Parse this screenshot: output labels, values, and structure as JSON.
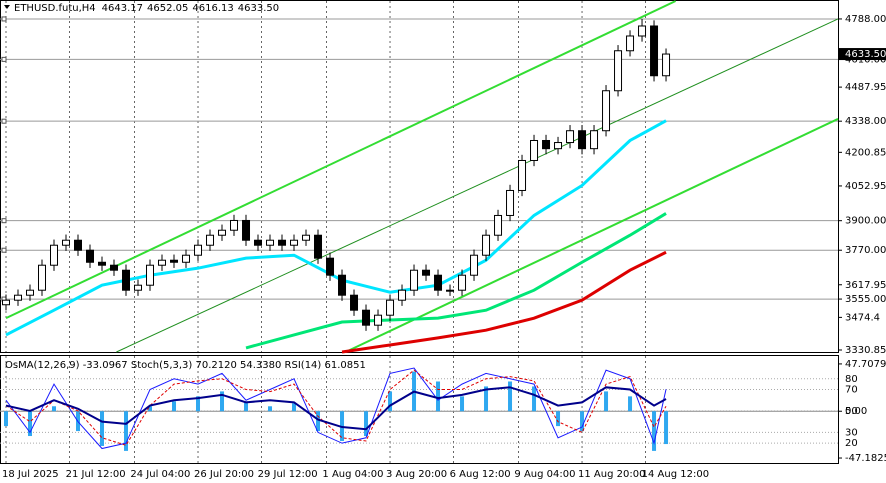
{
  "chart_data": [
    {
      "type": "candlestick",
      "title": "ETHUSD.futu,H4",
      "header_values": [
        "4643.17",
        "4652.05",
        "4616.13",
        "4633.50"
      ],
      "last_price_label": "4633.50",
      "xlim": [
        -0.5,
        69.33
      ],
      "xticks": [
        {
          "value": 0,
          "label": "18 Jul 2025"
        },
        {
          "value": 5.3,
          "label": "21 Jul 12:00"
        },
        {
          "value": 10.7,
          "label": "24 Jul 04:00"
        },
        {
          "value": 16,
          "label": "26 Jul 20:00"
        },
        {
          "value": 21.3,
          "label": "29 Jul 12:00"
        },
        {
          "value": 26.7,
          "label": "1 Aug 04:00"
        },
        {
          "value": 32,
          "label": "3 Aug 20:00"
        },
        {
          "value": 37.3,
          "label": "6 Aug 12:00"
        },
        {
          "value": 42.7,
          "label": "9 Aug 04:00"
        },
        {
          "value": 48,
          "label": "11 Aug 20:00"
        },
        {
          "value": 53.3,
          "label": "14 Aug 12:00"
        }
      ],
      "ylim": [
        3322,
        4867
      ],
      "yticks": [
        {
          "value": 4788,
          "label": "4788.00"
        },
        {
          "value": 4610,
          "label": "4610.00"
        },
        4487.95,
        {
          "value": 4338,
          "label": "4338.00"
        },
        4200.85,
        4052.95,
        {
          "value": 3900,
          "label": "3900.00"
        },
        {
          "value": 3770,
          "label": "3770.00"
        },
        3617.95,
        {
          "value": 3555,
          "label": "3555.00"
        },
        3474.4,
        3330.85
      ],
      "levels": [
        4788,
        4610,
        4338,
        3900,
        3770,
        3555
      ],
      "open": [
        3530,
        3550,
        3572,
        3594,
        3704,
        3792,
        3814,
        3770,
        3717,
        3704,
        3682,
        3594,
        3616,
        3704,
        3726,
        3717,
        3748,
        3792,
        3836,
        3858,
        3901,
        3814,
        3792,
        3814,
        3792,
        3814,
        3836,
        3735,
        3660,
        3572,
        3506,
        3440,
        3484,
        3550,
        3594,
        3682,
        3660,
        3594,
        3594,
        3660,
        3748,
        3836,
        3923,
        4033,
        4165,
        4253,
        4217,
        4244,
        4296,
        4217,
        4296,
        4472,
        4648,
        4713,
        4757,
        4538
      ],
      "high": [
        3575,
        3597,
        3619,
        3729,
        3817,
        3839,
        3839,
        3795,
        3742,
        3729,
        3707,
        3641,
        3729,
        3751,
        3751,
        3773,
        3817,
        3861,
        3883,
        3926,
        3926,
        3839,
        3839,
        3839,
        3839,
        3861,
        3861,
        3760,
        3685,
        3597,
        3531,
        3509,
        3575,
        3619,
        3707,
        3707,
        3685,
        3619,
        3685,
        3773,
        3861,
        3948,
        4058,
        4190,
        4278,
        4278,
        4269,
        4321,
        4321,
        4321,
        4497,
        4673,
        4738,
        4788,
        4782,
        4658
      ],
      "low": [
        3505,
        3525,
        3547,
        3569,
        3679,
        3767,
        3745,
        3692,
        3679,
        3657,
        3569,
        3569,
        3591,
        3679,
        3692,
        3692,
        3723,
        3767,
        3811,
        3833,
        3789,
        3767,
        3767,
        3767,
        3767,
        3789,
        3710,
        3635,
        3547,
        3481,
        3415,
        3415,
        3459,
        3525,
        3569,
        3635,
        3569,
        3569,
        3569,
        3635,
        3723,
        3811,
        3898,
        4008,
        4140,
        4192,
        4192,
        4219,
        4192,
        4192,
        4271,
        4447,
        4623,
        4688,
        4513,
        4513
      ],
      "close": [
        3550,
        3572,
        3594,
        3704,
        3792,
        3814,
        3770,
        3717,
        3704,
        3682,
        3594,
        3616,
        3704,
        3726,
        3717,
        3748,
        3792,
        3836,
        3858,
        3901,
        3814,
        3792,
        3814,
        3792,
        3814,
        3836,
        3735,
        3660,
        3572,
        3506,
        3440,
        3484,
        3550,
        3594,
        3682,
        3660,
        3594,
        3594,
        3660,
        3748,
        3836,
        3923,
        4033,
        4165,
        4253,
        4217,
        4244,
        4296,
        4217,
        4296,
        4472,
        4648,
        4713,
        4757,
        4538,
        4633.5
      ],
      "series": [
        {
          "color": "#00e5ff",
          "x": [
            0,
            4,
            8,
            12,
            16,
            20,
            24,
            28,
            32,
            36,
            40,
            44,
            48,
            52,
            55
          ],
          "values": [
            3397,
            3506,
            3616,
            3660,
            3691,
            3735,
            3748,
            3638,
            3585,
            3616,
            3726,
            3923,
            4055,
            4253,
            4340
          ]
        },
        {
          "color": "#00e676",
          "x": [
            20,
            24,
            28,
            32,
            36,
            40,
            44,
            48,
            52,
            55
          ],
          "values": [
            3340,
            3397,
            3454,
            3463,
            3471,
            3506,
            3594,
            3717,
            3836,
            3932
          ]
        },
        {
          "color": "#dd0000",
          "x": [
            28,
            32,
            36,
            40,
            44,
            48,
            52,
            55
          ],
          "values": [
            3322,
            3353,
            3384,
            3418,
            3471,
            3550,
            3682,
            3761
          ]
        }
      ],
      "trendlines": [
        {
          "color": "#33dd33",
          "x": [
            0,
            55.8
          ],
          "values": [
            3471,
            4867
          ]
        },
        {
          "color": "#33dd33",
          "x": [
            28.3,
            69.33
          ],
          "values": [
            3322,
            4348
          ]
        },
        {
          "color": "#1f8f1f",
          "x": [
            9.2,
            69.33
          ],
          "values": [
            3322,
            4788
          ]
        }
      ]
    },
    {
      "type": "oscillator",
      "title": "OsMA(12,26,9) -33.0967 Stoch(5,3,3) 70.2120 54.3380 RSI(14) 61.0851",
      "x": [
        0,
        2,
        4,
        6,
        8,
        10,
        12,
        14,
        16,
        18,
        20,
        22,
        24,
        26,
        28,
        30,
        32,
        34,
        36,
        38,
        40,
        42,
        44,
        46,
        48,
        50,
        52,
        54,
        55
      ],
      "ylim": [
        1.5,
        101.2
      ],
      "yticks": [
        80,
        70,
        50,
        30,
        20
      ],
      "y2lim": [
        -52.2,
        55.7
      ],
      "y2ticks": [
        47.7079,
        {
          "value": 0,
          "label": "0.00"
        },
        -47.1825
      ],
      "series": [
        {
          "type": "bar",
          "axis": "y2",
          "color": "#2fa8f0",
          "values": [
            -15,
            -25,
            5,
            -20,
            -35,
            -40,
            5,
            10,
            15,
            20,
            10,
            5,
            8,
            -20,
            -30,
            -25,
            20,
            40,
            30,
            15,
            25,
            30,
            25,
            -15,
            -20,
            20,
            15,
            -40,
            -33.0967
          ]
        },
        {
          "type": "line",
          "color": "#1a1aff",
          "values": [
            60,
            30,
            75,
            40,
            15,
            20,
            70,
            80,
            75,
            85,
            60,
            70,
            80,
            30,
            20,
            25,
            85,
            90,
            60,
            75,
            85,
            80,
            75,
            25,
            35,
            88,
            80,
            20,
            70.212
          ]
        },
        {
          "type": "line",
          "color": "#e00000",
          "values": [
            55,
            40,
            60,
            50,
            25,
            18,
            55,
            75,
            78,
            80,
            70,
            68,
            75,
            45,
            25,
            22,
            70,
            88,
            70,
            70,
            80,
            82,
            78,
            40,
            30,
            75,
            82,
            35,
            54.338
          ]
        },
        {
          "type": "line",
          "color": "#00008b",
          "values": [
            55,
            50,
            60,
            52,
            40,
            38,
            55,
            60,
            62,
            65,
            58,
            60,
            58,
            42,
            35,
            33,
            55,
            68,
            62,
            65,
            70,
            72,
            65,
            55,
            58,
            72,
            70,
            55,
            61.0851
          ]
        }
      ]
    }
  ]
}
